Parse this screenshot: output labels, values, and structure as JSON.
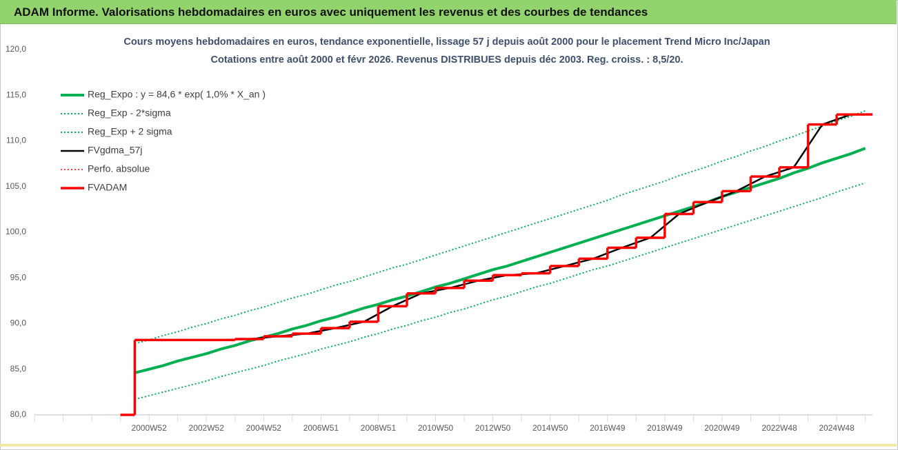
{
  "page_title": "ADAM Informe. Valorisations hebdomadaires en euros avec uniquement les revenus et des courbes de tendances",
  "chart_data": {
    "type": "line",
    "title": "Cours moyens hebdomadaires en euros, tendance exponentielle, lissage 57 j depuis août 2000 pour le placement Trend Micro Inc/Japan",
    "subtitle": "Cotations entre août 2000 et févr 2026. Revenus DISTRIBUES depuis déc 2003.  Reg. croiss. : 8,5/20.",
    "categories": [
      null,
      null,
      null,
      null,
      null,
      null,
      null,
      null,
      "2000W52",
      null,
      null,
      null,
      "2002W52",
      null,
      null,
      null,
      "2004W52",
      null,
      null,
      null,
      "2006W51",
      null,
      null,
      null,
      "2008W51",
      null,
      null,
      null,
      "2010W50",
      null,
      null,
      null,
      "2012W50",
      null,
      null,
      null,
      "2014W50",
      null,
      null,
      null,
      "2016W49",
      null,
      null,
      null,
      "2018W49",
      null,
      null,
      null,
      "2020W49",
      null,
      null,
      null,
      "2022W48",
      null,
      null,
      null,
      "2024W48",
      null,
      null
    ],
    "ylim": [
      80,
      120
    ],
    "yticks": [
      {
        "value": 80,
        "label": "80,0"
      },
      {
        "value": 85,
        "label": "85,0"
      },
      {
        "value": 90,
        "label": "90,0"
      },
      {
        "value": 95,
        "label": "95,0"
      },
      {
        "value": 100,
        "label": "100,0"
      },
      {
        "value": 105,
        "label": "105,0"
      },
      {
        "value": 110,
        "label": "110,0"
      },
      {
        "value": 115,
        "label": "115,0"
      },
      {
        "value": 120,
        "label": "120,0"
      }
    ],
    "grid": false,
    "legend": "top-left",
    "series": [
      {
        "name": "Reg_Expo : y = 84,6 * exp( 1,0% *  X_an )",
        "color": "#00b050",
        "style": "solid",
        "line_width": 4,
        "step": false,
        "values": [
          null,
          null,
          null,
          null,
          null,
          null,
          null,
          84.6,
          85.0,
          85.4,
          85.9,
          86.3,
          86.7,
          87.2,
          87.6,
          88.1,
          88.5,
          88.9,
          89.4,
          89.8,
          90.3,
          90.7,
          91.2,
          91.7,
          92.1,
          92.6,
          93.0,
          93.5,
          94.0,
          94.4,
          94.9,
          95.4,
          95.9,
          96.3,
          96.8,
          97.3,
          97.8,
          98.3,
          98.8,
          99.3,
          99.8,
          100.3,
          100.8,
          101.3,
          101.8,
          102.3,
          102.8,
          103.3,
          103.9,
          104.4,
          104.9,
          105.4,
          105.9,
          106.5,
          107.0,
          107.6,
          108.1,
          108.6,
          109.2
        ]
      },
      {
        "name": "Reg_Exp - 2*sigma",
        "color": "#00b050",
        "style": "dotted",
        "line_width": 2,
        "step": false,
        "values": [
          null,
          null,
          null,
          null,
          null,
          null,
          null,
          81.7,
          82.1,
          82.5,
          82.9,
          83.3,
          83.7,
          84.2,
          84.6,
          85.0,
          85.4,
          85.9,
          86.3,
          86.7,
          87.2,
          87.6,
          88.0,
          88.5,
          88.9,
          89.4,
          89.8,
          90.3,
          90.7,
          91.2,
          91.6,
          92.1,
          92.6,
          93.0,
          93.5,
          94.0,
          94.4,
          94.9,
          95.4,
          95.9,
          96.3,
          96.8,
          97.3,
          97.8,
          98.3,
          98.8,
          99.3,
          99.8,
          100.3,
          100.8,
          101.3,
          101.8,
          102.3,
          102.8,
          103.3,
          103.8,
          104.4,
          104.9,
          105.4
        ]
      },
      {
        "name": "Reg_Exp + 2 sigma",
        "color": "#00b050",
        "style": "dotted",
        "line_width": 2,
        "step": false,
        "values": [
          null,
          null,
          null,
          null,
          null,
          null,
          null,
          87.8,
          88.2,
          88.7,
          89.1,
          89.6,
          90.0,
          90.5,
          90.9,
          91.4,
          91.8,
          92.3,
          92.8,
          93.2,
          93.7,
          94.2,
          94.6,
          95.1,
          95.6,
          96.1,
          96.5,
          97.0,
          97.5,
          98.0,
          98.5,
          99.0,
          99.5,
          100.0,
          100.5,
          101.0,
          101.5,
          102.0,
          102.5,
          103.0,
          103.5,
          104.1,
          104.6,
          105.1,
          105.6,
          106.2,
          106.7,
          107.2,
          107.8,
          108.3,
          108.9,
          109.4,
          110.0,
          110.5,
          111.1,
          111.6,
          112.2,
          112.7,
          113.3
        ]
      },
      {
        "name": "FVgdma_57j",
        "color": "#000000",
        "style": "solid",
        "line_width": 2.5,
        "step": false,
        "values": [
          null,
          null,
          null,
          null,
          null,
          null,
          null,
          88.2,
          88.2,
          88.2,
          88.2,
          88.2,
          88.2,
          88.2,
          88.25,
          88.3,
          88.45,
          88.6,
          88.75,
          88.9,
          89.2,
          89.5,
          89.85,
          90.2,
          91.05,
          91.9,
          92.6,
          93.3,
          93.6,
          93.9,
          94.3,
          94.7,
          95.0,
          95.3,
          95.4,
          95.5,
          95.9,
          96.3,
          96.7,
          97.1,
          97.7,
          98.3,
          98.85,
          99.4,
          100.7,
          102.0,
          102.65,
          103.3,
          103.9,
          104.5,
          105.3,
          106.1,
          106.6,
          107.1,
          109.45,
          111.8,
          112.35,
          112.9,
          112.9
        ]
      },
      {
        "name": "Perfo. absolue",
        "color": "#ff0000",
        "style": "dotted",
        "line_width": 1.5,
        "step": true,
        "values": [
          null,
          null,
          null,
          null,
          null,
          null,
          80,
          88.2,
          88.2,
          88.2,
          88.2,
          88.2,
          88.2,
          88.2,
          88.3,
          88.3,
          88.6,
          88.6,
          88.9,
          88.9,
          89.5,
          89.5,
          90.2,
          90.2,
          91.9,
          91.9,
          93.3,
          93.3,
          93.9,
          93.9,
          94.7,
          94.7,
          95.3,
          95.3,
          95.5,
          95.5,
          96.3,
          96.3,
          97.1,
          97.1,
          98.3,
          98.3,
          99.4,
          99.4,
          102.0,
          102.0,
          103.3,
          103.3,
          104.5,
          104.5,
          106.1,
          106.1,
          107.1,
          107.1,
          111.8,
          111.8,
          112.9,
          112.9,
          112.9
        ]
      },
      {
        "name": "FVADAM",
        "color": "#ff0000",
        "style": "solid",
        "line_width": 3.5,
        "step": true,
        "values": [
          null,
          null,
          null,
          null,
          null,
          null,
          80,
          88.2,
          88.2,
          88.2,
          88.2,
          88.2,
          88.2,
          88.2,
          88.3,
          88.3,
          88.6,
          88.6,
          88.9,
          88.9,
          89.5,
          89.5,
          90.2,
          90.2,
          91.9,
          91.9,
          93.3,
          93.3,
          93.9,
          93.9,
          94.7,
          94.7,
          95.3,
          95.3,
          95.5,
          95.5,
          96.3,
          96.3,
          97.1,
          97.1,
          98.3,
          98.3,
          99.4,
          99.4,
          102.0,
          102.0,
          103.3,
          103.3,
          104.5,
          104.5,
          106.1,
          106.1,
          107.1,
          107.1,
          111.8,
          111.8,
          112.9,
          112.9,
          112.9
        ]
      }
    ]
  }
}
